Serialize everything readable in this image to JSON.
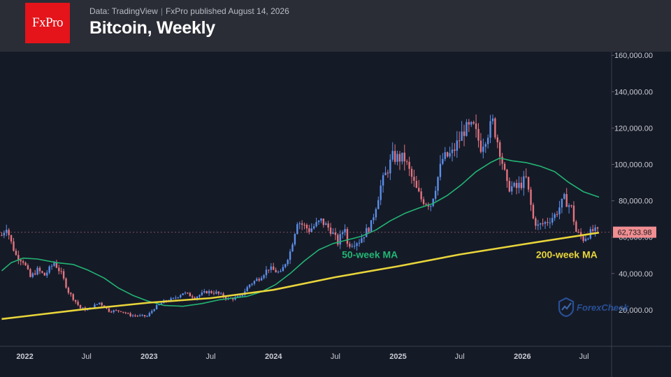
{
  "header": {
    "logo_text": "FxPro",
    "data_source": "Data: TradingView",
    "published": "FxPro published August 14, 2026",
    "title": "Bitcoin, Weekly"
  },
  "watermark": {
    "text": "ForexCheck"
  },
  "colors": {
    "up": "#5b8fe8",
    "down": "#e3747e",
    "ma50": "#22b573",
    "ma200": "#e8d53a",
    "price_tag": "#f08e92",
    "background": "#151a27",
    "header": "#2a2d35"
  },
  "chart_data": {
    "type": "line",
    "title": "Bitcoin, Weekly",
    "x_range": [
      "2021-10-20",
      "2026-09-20"
    ],
    "ylim": [
      0,
      162000
    ],
    "y_ticks": [
      20000,
      40000,
      60000,
      80000,
      100000,
      120000,
      140000,
      160000
    ],
    "y_tick_labels": [
      "20,000.00",
      "40,000.00",
      "60,000.00",
      "80,000.00",
      "100,000.00",
      "120,000.00",
      "140,000.00",
      "160,000.00"
    ],
    "x_ticks": [
      {
        "date": "2022-01-01",
        "label": "2022",
        "bold": true
      },
      {
        "date": "2022-07-01",
        "label": "Jul",
        "bold": false
      },
      {
        "date": "2023-01-01",
        "label": "2023",
        "bold": true
      },
      {
        "date": "2023-07-01",
        "label": "Jul",
        "bold": false
      },
      {
        "date": "2024-01-01",
        "label": "2024",
        "bold": true
      },
      {
        "date": "2024-07-01",
        "label": "Jul",
        "bold": false
      },
      {
        "date": "2025-01-01",
        "label": "2025",
        "bold": true
      },
      {
        "date": "2025-07-01",
        "label": "Jul",
        "bold": false
      },
      {
        "date": "2026-01-01",
        "label": "2026",
        "bold": true
      },
      {
        "date": "2026-07-01",
        "label": "Jul",
        "bold": false
      }
    ],
    "last_price": 62733.98,
    "last_price_label": "62,733.98",
    "price_series": {
      "kind": "weekly close (candles)",
      "points": [
        [
          "2021-10-25",
          61000
        ],
        [
          "2021-11-08",
          66000
        ],
        [
          "2021-11-22",
          57000
        ],
        [
          "2021-12-06",
          50000
        ],
        [
          "2021-12-27",
          47000
        ],
        [
          "2022-01-17",
          38000
        ],
        [
          "2022-02-07",
          42000
        ],
        [
          "2022-02-28",
          39000
        ],
        [
          "2022-03-28",
          46000
        ],
        [
          "2022-04-18",
          40000
        ],
        [
          "2022-05-09",
          30000
        ],
        [
          "2022-06-13",
          21000
        ],
        [
          "2022-07-04",
          20000
        ],
        [
          "2022-08-08",
          24000
        ],
        [
          "2022-09-05",
          19500
        ],
        [
          "2022-10-10",
          19500
        ],
        [
          "2022-11-07",
          17000
        ],
        [
          "2022-12-26",
          16500
        ],
        [
          "2023-01-16",
          21000
        ],
        [
          "2023-02-13",
          24500
        ],
        [
          "2023-03-13",
          26000
        ],
        [
          "2023-04-10",
          29500
        ],
        [
          "2023-05-15",
          27000
        ],
        [
          "2023-06-19",
          30000
        ],
        [
          "2023-07-17",
          29500
        ],
        [
          "2023-08-21",
          26000
        ],
        [
          "2023-09-25",
          27000
        ],
        [
          "2023-10-23",
          34000
        ],
        [
          "2023-11-20",
          37500
        ],
        [
          "2023-12-18",
          43000
        ],
        [
          "2024-01-22",
          40000
        ],
        [
          "2024-02-19",
          52000
        ],
        [
          "2024-03-11",
          69000
        ],
        [
          "2024-04-15",
          64000
        ],
        [
          "2024-05-20",
          69000
        ],
        [
          "2024-06-17",
          64000
        ],
        [
          "2024-07-08",
          57000
        ],
        [
          "2024-07-29",
          66000
        ],
        [
          "2024-08-05",
          56000
        ],
        [
          "2024-09-09",
          58000
        ],
        [
          "2024-10-14",
          67000
        ],
        [
          "2024-11-11",
          88000
        ],
        [
          "2024-12-16",
          104000
        ],
        [
          "2025-01-20",
          103000
        ],
        [
          "2025-02-24",
          86000
        ],
        [
          "2025-03-10",
          81000
        ],
        [
          "2025-04-07",
          78000
        ],
        [
          "2025-05-12",
          103000
        ],
        [
          "2025-06-09",
          106000
        ],
        [
          "2025-07-14",
          119000
        ],
        [
          "2025-08-11",
          120000
        ],
        [
          "2025-09-01",
          110000
        ],
        [
          "2025-10-06",
          123000
        ],
        [
          "2025-10-27",
          108000
        ],
        [
          "2025-11-17",
          88000
        ],
        [
          "2025-12-15",
          87000
        ],
        [
          "2026-01-12",
          92000
        ],
        [
          "2026-02-02",
          70000
        ],
        [
          "2026-02-16",
          66000
        ],
        [
          "2026-03-09",
          68000
        ],
        [
          "2026-04-06",
          72000
        ],
        [
          "2026-05-04",
          81000
        ],
        [
          "2026-05-25",
          76000
        ],
        [
          "2026-06-08",
          63000
        ],
        [
          "2026-06-29",
          59000
        ],
        [
          "2026-07-27",
          63500
        ],
        [
          "2026-08-14",
          62734
        ]
      ]
    },
    "series": [
      {
        "name": "50-week MA",
        "color": "#22b573",
        "points": [
          [
            "2021-10-25",
            41500
          ],
          [
            "2021-11-22",
            46000
          ],
          [
            "2021-12-27",
            48500
          ],
          [
            "2022-02-07",
            48000
          ],
          [
            "2022-04-04",
            46000
          ],
          [
            "2022-05-23",
            45000
          ],
          [
            "2022-07-04",
            42000
          ],
          [
            "2022-08-22",
            37500
          ],
          [
            "2022-10-03",
            32000
          ],
          [
            "2022-11-14",
            28000
          ],
          [
            "2022-12-26",
            25000
          ],
          [
            "2023-02-13",
            22500
          ],
          [
            "2023-04-10",
            22000
          ],
          [
            "2023-06-05",
            23500
          ],
          [
            "2023-07-24",
            25500
          ],
          [
            "2023-09-04",
            26500
          ],
          [
            "2023-10-16",
            27500
          ],
          [
            "2023-11-27",
            30000
          ],
          [
            "2024-01-08",
            34000
          ],
          [
            "2024-02-19",
            40000
          ],
          [
            "2024-04-01",
            47000
          ],
          [
            "2024-05-13",
            53000
          ],
          [
            "2024-06-24",
            56500
          ],
          [
            "2024-08-05",
            58500
          ],
          [
            "2024-09-16",
            60500
          ],
          [
            "2024-10-28",
            64000
          ],
          [
            "2024-12-09",
            69000
          ],
          [
            "2025-01-20",
            73000
          ],
          [
            "2025-03-03",
            76000
          ],
          [
            "2025-04-14",
            78500
          ],
          [
            "2025-05-26",
            83000
          ],
          [
            "2025-07-07",
            89000
          ],
          [
            "2025-08-18",
            96000
          ],
          [
            "2025-09-29",
            101000
          ],
          [
            "2025-10-27",
            103500
          ],
          [
            "2025-12-01",
            102000
          ],
          [
            "2026-01-12",
            101000
          ],
          [
            "2026-02-23",
            99000
          ],
          [
            "2026-04-06",
            96000
          ],
          [
            "2026-05-18",
            90000
          ],
          [
            "2026-06-29",
            85000
          ],
          [
            "2026-08-14",
            82000
          ]
        ]
      },
      {
        "name": "200-week MA",
        "color": "#e8d53a",
        "points": [
          [
            "2021-10-25",
            15000
          ],
          [
            "2022-01-01",
            16500
          ],
          [
            "2022-07-01",
            20500
          ],
          [
            "2023-01-01",
            24000
          ],
          [
            "2023-07-01",
            26500
          ],
          [
            "2024-01-01",
            31000
          ],
          [
            "2024-07-01",
            38000
          ],
          [
            "2025-01-01",
            44000
          ],
          [
            "2025-07-01",
            50500
          ],
          [
            "2026-01-01",
            56000
          ],
          [
            "2026-08-14",
            62500
          ]
        ]
      }
    ],
    "annotations": [
      {
        "text": "50-week MA",
        "color": "#22b573",
        "date": "2024-07-20",
        "value": 48500
      },
      {
        "text": "200-week MA",
        "color": "#e8d53a",
        "date": "2026-02-10",
        "value": 48500
      }
    ],
    "grid": false,
    "legend": "none"
  }
}
